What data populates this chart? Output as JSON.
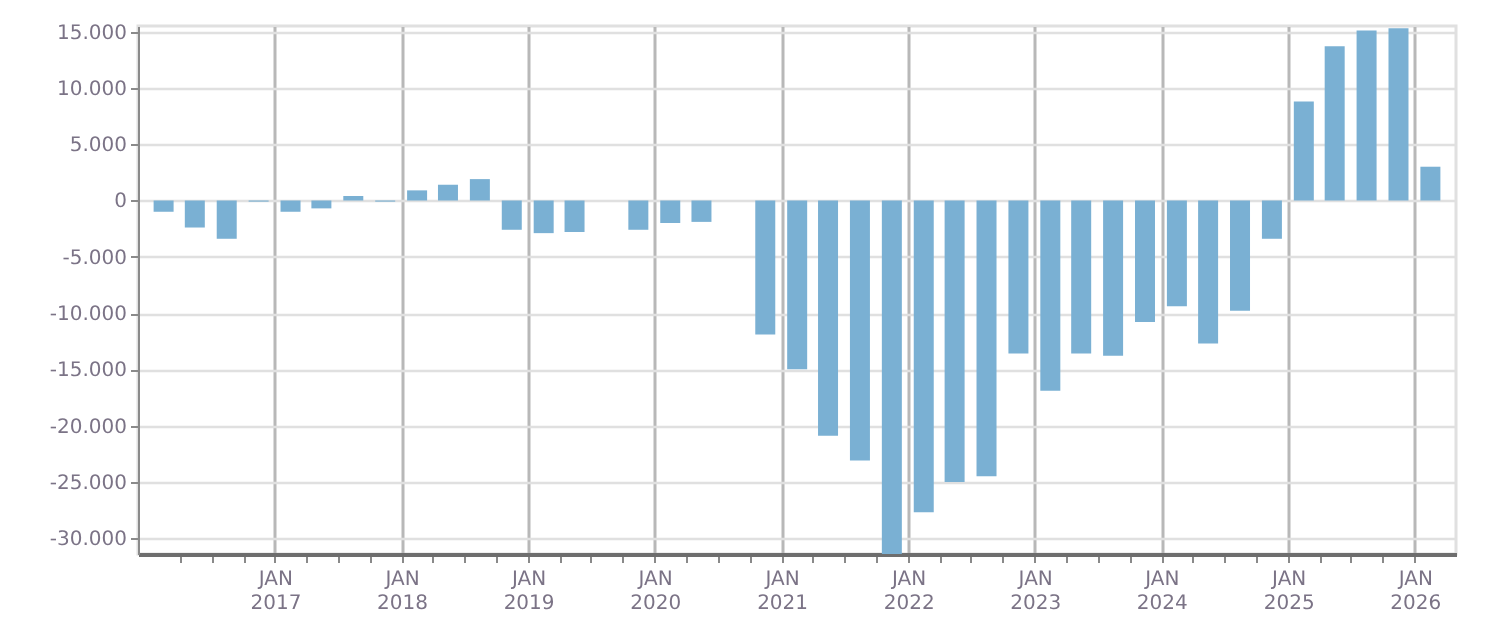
{
  "chart_data": {
    "type": "bar",
    "color": "#7ab0d3",
    "x": [
      "2016-02-15",
      "2016-05-15",
      "2016-08-15",
      "2016-11-15",
      "2017-02-15",
      "2017-05-15",
      "2017-08-15",
      "2017-11-15",
      "2018-02-15",
      "2018-05-15",
      "2018-08-15",
      "2018-11-15",
      "2019-02-15",
      "2019-05-15",
      "2019-08-15",
      "2019-11-15",
      "2020-02-15",
      "2020-05-15",
      "2020-08-15",
      "2020-11-15",
      "2021-02-15",
      "2021-05-15",
      "2021-08-15",
      "2021-11-15",
      "2022-02-15",
      "2022-05-15",
      "2022-08-15",
      "2022-11-15",
      "2023-02-15",
      "2023-05-15",
      "2023-08-15",
      "2023-11-15",
      "2024-02-15",
      "2024-05-15",
      "2024-08-15",
      "2024-11-15",
      "2025-02-15",
      "2025-05-15",
      "2025-08-15",
      "2025-11-15",
      "2026-02-15"
    ],
    "values": [
      -1000,
      -2400,
      -3400,
      -100,
      -1000,
      -700,
      400,
      -100,
      900,
      1400,
      1900,
      -2600,
      -2900,
      -2800,
      null,
      -2600,
      -2000,
      -1900,
      null,
      -11900,
      -15000,
      -20900,
      -23100,
      -31400,
      -27700,
      -25000,
      -24500,
      -13600,
      -16900,
      -13600,
      -13800,
      -10800,
      -9400,
      -12700,
      -9800,
      -3400,
      8800,
      13700,
      15100,
      15300,
      3000
    ],
    "xlim": [
      "2016-01-01",
      "2026-04-01"
    ],
    "xticks": [
      {
        "value": "2016-04-01",
        "label": null
      },
      {
        "value": "2016-07-01",
        "label": null
      },
      {
        "value": "2016-10-01",
        "label": null
      },
      {
        "value": "2017-01-01",
        "label": "JAN 2017"
      },
      {
        "value": "2017-04-01",
        "label": null
      },
      {
        "value": "2017-07-01",
        "label": null
      },
      {
        "value": "2017-10-01",
        "label": null
      },
      {
        "value": "2018-01-01",
        "label": "JAN 2018"
      },
      {
        "value": "2018-04-01",
        "label": null
      },
      {
        "value": "2018-07-01",
        "label": null
      },
      {
        "value": "2018-10-01",
        "label": null
      },
      {
        "value": "2019-01-01",
        "label": "JAN 2019"
      },
      {
        "value": "2019-04-01",
        "label": null
      },
      {
        "value": "2019-07-01",
        "label": null
      },
      {
        "value": "2019-10-01",
        "label": null
      },
      {
        "value": "2020-01-01",
        "label": "JAN 2020"
      },
      {
        "value": "2020-04-01",
        "label": null
      },
      {
        "value": "2020-07-01",
        "label": null
      },
      {
        "value": "2020-10-01",
        "label": null
      },
      {
        "value": "2021-01-01",
        "label": "JAN 2021"
      },
      {
        "value": "2021-04-01",
        "label": null
      },
      {
        "value": "2021-07-01",
        "label": null
      },
      {
        "value": "2021-10-01",
        "label": null
      },
      {
        "value": "2022-01-01",
        "label": "JAN 2022"
      },
      {
        "value": "2022-04-01",
        "label": null
      },
      {
        "value": "2022-07-01",
        "label": null
      },
      {
        "value": "2022-10-01",
        "label": null
      },
      {
        "value": "2023-01-01",
        "label": "JAN 2023"
      },
      {
        "value": "2023-04-01",
        "label": null
      },
      {
        "value": "2023-07-01",
        "label": null
      },
      {
        "value": "2023-10-01",
        "label": null
      },
      {
        "value": "2024-01-01",
        "label": "JAN 2024"
      },
      {
        "value": "2024-04-01",
        "label": null
      },
      {
        "value": "2024-07-01",
        "label": null
      },
      {
        "value": "2024-10-01",
        "label": null
      },
      {
        "value": "2025-01-01",
        "label": "JAN 2025"
      },
      {
        "value": "2025-04-01",
        "label": null
      },
      {
        "value": "2025-07-01",
        "label": null
      },
      {
        "value": "2025-10-01",
        "label": null
      },
      {
        "value": "2026-01-01",
        "label": "JAN 2026"
      }
    ],
    "ylim": [
      -31400,
      15500
    ],
    "yticks": [
      {
        "value": -30000,
        "label": "-30.000"
      },
      {
        "value": -25000,
        "label": "-25.000"
      },
      {
        "value": -20000,
        "label": "-20.000"
      },
      {
        "value": -15000,
        "label": "-15.000"
      },
      {
        "value": -10000,
        "label": "-10.000"
      },
      {
        "value": -5000,
        "label": "-5.000"
      },
      {
        "value": 0,
        "label": "0"
      },
      {
        "value": 5000,
        "label": "5.000"
      },
      {
        "value": 10000,
        "label": "10.000"
      },
      {
        "value": 15000,
        "label": "15.000"
      }
    ],
    "grid": true
  }
}
